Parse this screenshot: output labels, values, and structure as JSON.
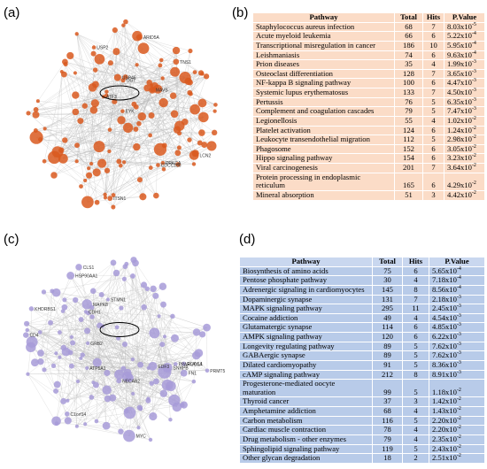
{
  "panel_a": {
    "label": "(a)",
    "node_labels": [
      "ITSN1",
      "USP2",
      "CDCC186",
      "PRKCA",
      "ARID5A",
      "EYK",
      "TNS1",
      "MAVS",
      "USP46",
      "ATF3",
      "LCN2",
      "OGT"
    ]
  },
  "panel_b": {
    "label": "(b)",
    "header": [
      "Pathway",
      "Total",
      "Hits",
      "P.Value"
    ],
    "p_base": "x10",
    "rows": [
      [
        "Staphylococcus aureus infection",
        68,
        7,
        "8.03",
        "-5"
      ],
      [
        "Acute myeloid leukemia",
        66,
        6,
        "5.22",
        "-4"
      ],
      [
        "Transcriptional misregulation in cancer",
        186,
        10,
        "5.95",
        "-4"
      ],
      [
        "Leishmaniasis",
        74,
        6,
        "9.63",
        "-4"
      ],
      [
        "Prion diseases",
        35,
        4,
        "1.99",
        "-3"
      ],
      [
        "Osteoclast differentiation",
        128,
        7,
        "3.65",
        "-3"
      ],
      [
        "NF-kappa B signaling pathway",
        100,
        6,
        "4.47",
        "-3"
      ],
      [
        "Systemic lupus erythematosus",
        133,
        7,
        "4.50",
        "-3"
      ],
      [
        "Pertussis",
        76,
        5,
        "6.35",
        "-3"
      ],
      [
        "Complement and coagulation cascades",
        79,
        5,
        "7.47",
        "-3"
      ],
      [
        "Legionellosis",
        55,
        4,
        "1.02",
        "-2"
      ],
      [
        "Platelet activation",
        124,
        6,
        "1.24",
        "-2"
      ],
      [
        "Leukocyte transendothelial migration",
        112,
        5,
        "2.98",
        "-2"
      ],
      [
        "Phagosome",
        152,
        6,
        "3.05",
        "-2"
      ],
      [
        "Hippo signaling pathway",
        154,
        6,
        "3.23",
        "-2"
      ],
      [
        "Viral carcinogenesis",
        201,
        7,
        "3.64",
        "-2"
      ],
      [
        "Protein processing in endoplasmic reticulum",
        165,
        6,
        "4.29",
        "-2"
      ],
      [
        "Mineral absorption",
        51,
        3,
        "4.42",
        "-2"
      ]
    ]
  },
  "panel_c": {
    "label": "(c)",
    "node_labels": [
      "EDF3",
      "STMN1",
      "HSP90AA1",
      "KHDRBS1",
      "MAPK8",
      "C1orf14",
      "GRB2",
      "MYC",
      "CLS1",
      "SNRPB",
      "ELAVL1",
      "ATP5A1",
      "PPARGC1A",
      "PRMT5",
      "NECAB2",
      "FN1",
      "CDH1",
      "CD4"
    ]
  },
  "panel_d": {
    "label": "(d)",
    "header": [
      "Pathway",
      "Total",
      "Hits",
      "P.Value"
    ],
    "p_base": "x10",
    "rows": [
      [
        "Biosynthesis of amino acids",
        75,
        6,
        "5.65",
        "-4"
      ],
      [
        "Pentose phosphate pathway",
        30,
        4,
        "7.18",
        "-4"
      ],
      [
        "Adrenergic signaling in cardiomyocytes",
        145,
        8,
        "8.56",
        "-4"
      ],
      [
        "Dopaminergic synapse",
        131,
        7,
        "2.18",
        "-3"
      ],
      [
        "MAPK signaling pathway",
        295,
        11,
        "2.45",
        "-3"
      ],
      [
        "Cocaine addiction",
        49,
        4,
        "4.54",
        "-3"
      ],
      [
        "Glutamatergic synapse",
        114,
        6,
        "4.85",
        "-3"
      ],
      [
        "AMPK signaling pathway",
        120,
        6,
        "6.22",
        "-3"
      ],
      [
        "Longevity regulating pathway",
        89,
        5,
        "7.62",
        "-3"
      ],
      [
        "GABAergic synapse",
        89,
        5,
        "7.62",
        "-3"
      ],
      [
        "Dilated cardiomyopathy",
        91,
        5,
        "8.36",
        "-3"
      ],
      [
        "cAMP signaling pathway",
        212,
        8,
        "8.91",
        "-3"
      ],
      [
        "Progesterone-mediated oocyte maturation",
        99,
        5,
        "1.18",
        "-2"
      ],
      [
        "Thyroid cancer",
        37,
        3,
        "1.42",
        "-2"
      ],
      [
        "Amphetamine addiction",
        68,
        4,
        "1.43",
        "-2"
      ],
      [
        "Carbon metabolism",
        116,
        5,
        "2.20",
        "-2"
      ],
      [
        "Cardiac muscle contraction",
        78,
        4,
        "2.20",
        "-2"
      ],
      [
        "Drug metabolism - other enzymes",
        79,
        4,
        "2.35",
        "-2"
      ],
      [
        "Sphingolipid signaling pathway",
        119,
        5,
        "2.43",
        "-2"
      ],
      [
        "Other glycan degradation",
        18,
        2,
        "2.51",
        "-2"
      ]
    ]
  }
}
